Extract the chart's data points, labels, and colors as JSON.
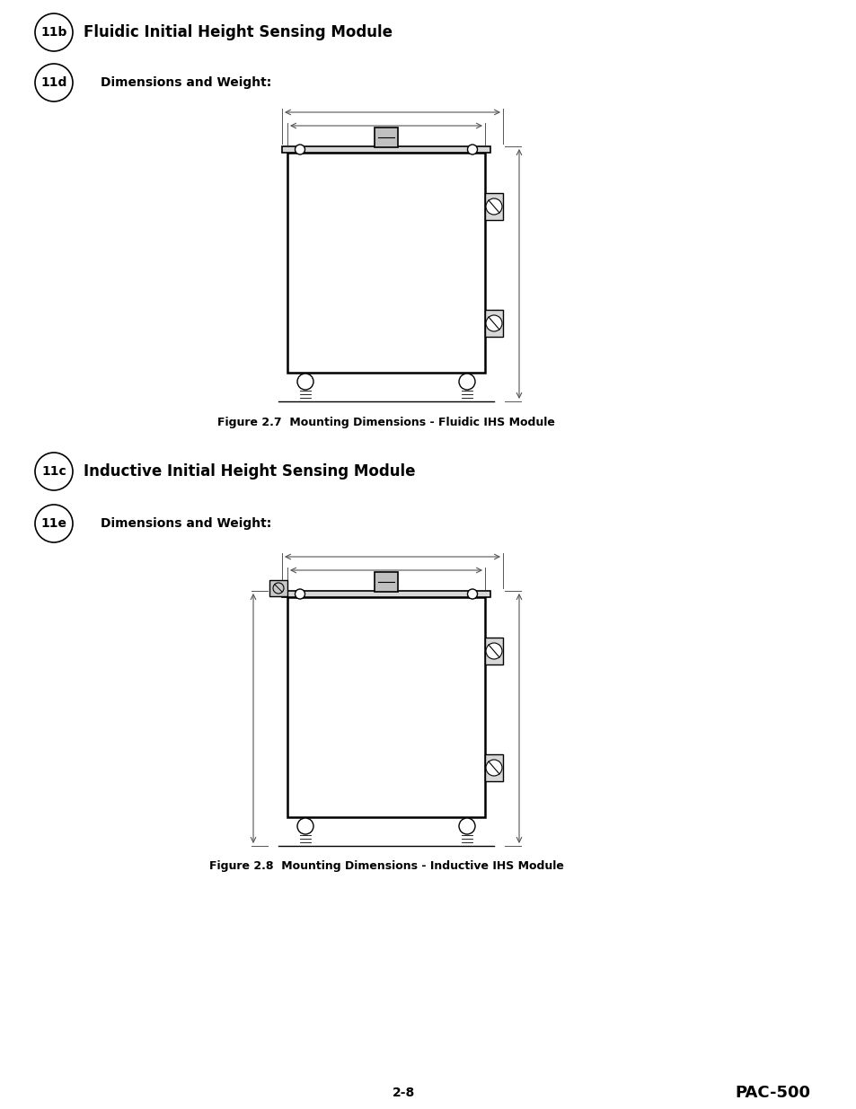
{
  "bg_color": "#ffffff",
  "page_width": 9.54,
  "page_height": 12.35,
  "section1_badge1": "11b",
  "section1_title": "Fluidic Initial Height Sensing Module",
  "section1_badge2": "11d",
  "section1_subtitle": "Dimensions and Weight:",
  "fig1_caption": "Figure 2.7  Mounting Dimensions - Fluidic IHS Module",
  "section2_badge1": "11c",
  "section2_title": "Inductive Initial Height Sensing Module",
  "section2_badge2": "11e",
  "section2_subtitle": "Dimensions and Weight:",
  "fig2_caption": "Figure 2.8  Mounting Dimensions - Inductive IHS Module",
  "footer_left": "2-8",
  "footer_right": "PAC-500",
  "line_color": "#000000",
  "dim_line_color": "#555555"
}
